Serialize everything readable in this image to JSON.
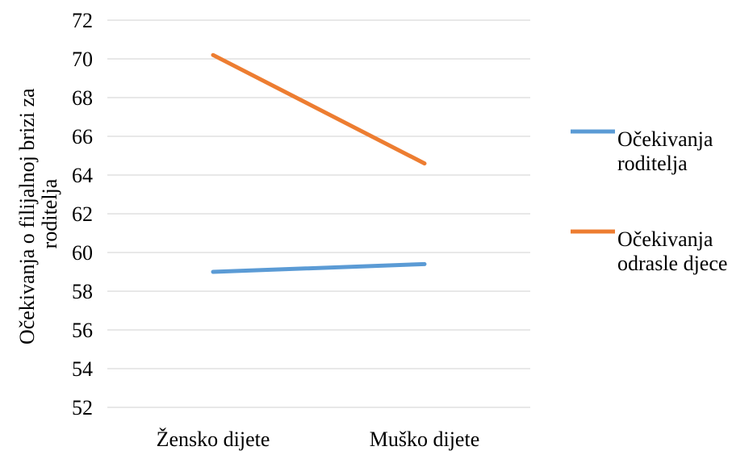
{
  "chart_data": {
    "type": "line",
    "title": "",
    "xlabel": "",
    "ylabel": "Očekivanja o filijalnoj brizi za roditelja",
    "ylabel_lines": [
      "Očekivanja o filijalnoj brizi za",
      "roditelja"
    ],
    "categories": [
      "Žensko dijete",
      "Muško dijete"
    ],
    "ylim": [
      52,
      72
    ],
    "yticks": [
      52,
      54,
      56,
      58,
      60,
      62,
      64,
      66,
      68,
      70,
      72
    ],
    "grid": true,
    "legend_position": "right",
    "series": [
      {
        "name": "Očekivanja roditelja",
        "name_lines": [
          "Očekivanja",
          "roditelja"
        ],
        "color": "#5b9bd5",
        "values": [
          59.0,
          59.4
        ]
      },
      {
        "name": "Očekivanja odrasle djece",
        "name_lines": [
          "Očekivanja",
          "odrasle djece"
        ],
        "color": "#ed7d31",
        "values": [
          70.2,
          64.6
        ]
      }
    ]
  }
}
